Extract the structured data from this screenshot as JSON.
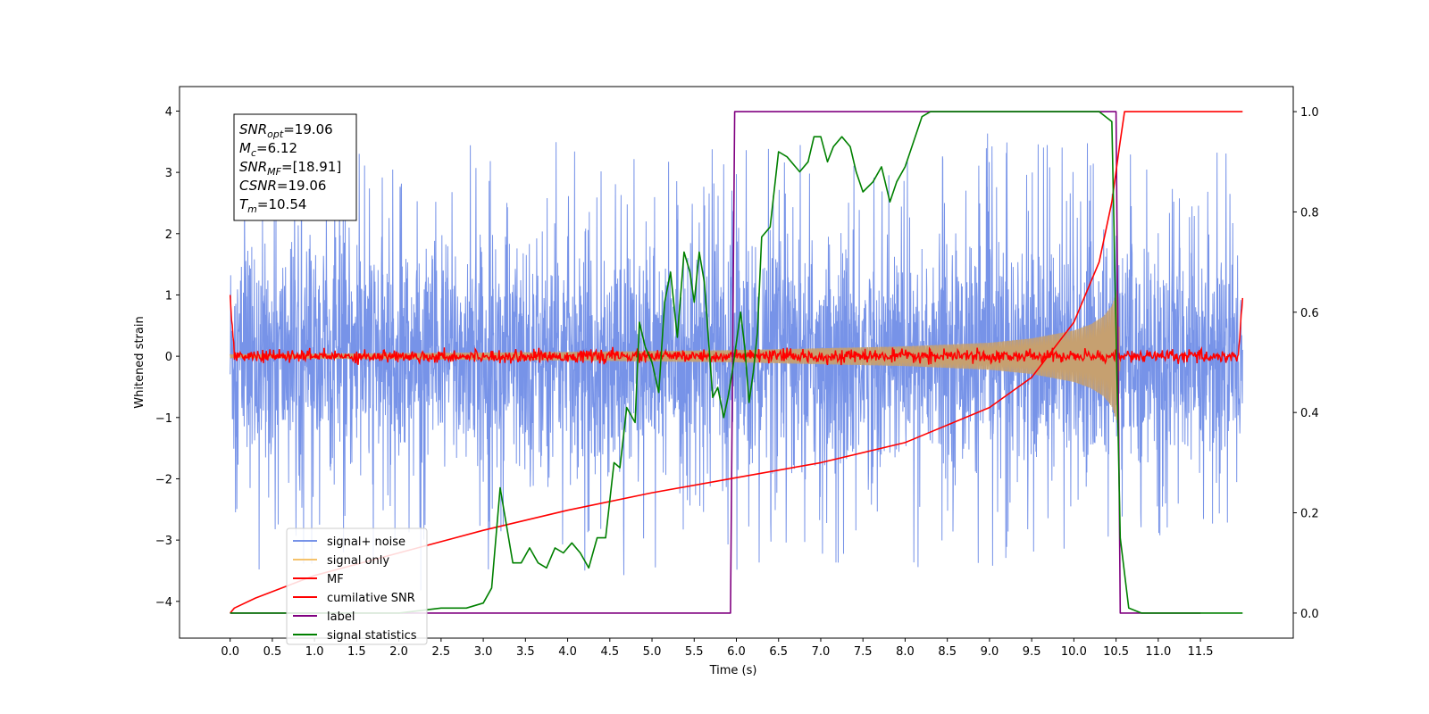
{
  "chart_data": {
    "type": "line",
    "xlabel": "Time (s)",
    "ylabel": "Whitened strain",
    "xlim": [
      -0.6,
      12.6
    ],
    "ylim": [
      -4.6,
      4.4
    ],
    "y2lim": [
      -0.05,
      1.05
    ],
    "x_ticks": [
      "0.0",
      "0.5",
      "1.0",
      "1.5",
      "2.0",
      "2.5",
      "3.0",
      "3.5",
      "4.0",
      "4.5",
      "5.0",
      "5.5",
      "6.0",
      "6.5",
      "7.0",
      "7.5",
      "8.0",
      "8.5",
      "9.0",
      "9.5",
      "10.0",
      "10.5",
      "11.0",
      "11.5"
    ],
    "y_ticks": [
      "4",
      "3",
      "2",
      "1",
      "0",
      "−1",
      "−2",
      "−3",
      "−4"
    ],
    "y2_ticks": [
      "1.0",
      "0.8",
      "0.6",
      "0.4",
      "0.2",
      "0.0"
    ],
    "legend_location": "lower-left",
    "legend": [
      {
        "label": "signal+ noise",
        "color": "#6b8ae6"
      },
      {
        "label": "signal only",
        "color": "#f5c26b"
      },
      {
        "label": "MF",
        "color": "#ff0000"
      },
      {
        "label": "cumilative SNR",
        "color": "#ff0000"
      },
      {
        "label": "label",
        "color": "#800080"
      },
      {
        "label": "signal statistics",
        "color": "#008000"
      }
    ],
    "annotation": [
      {
        "main": "SNR",
        "sub": "opt",
        "value": "=19.06"
      },
      {
        "main": "M",
        "sub": "c",
        "value": "=6.12"
      },
      {
        "main": "SNR",
        "sub": "MF",
        "value": "=[18.91]"
      },
      {
        "main": "CSNR",
        "sub": "",
        "value": "=19.06"
      },
      {
        "main": "T",
        "sub": "m",
        "value": "=10.54"
      }
    ],
    "series": [
      {
        "name": "label",
        "axis": "right",
        "x": [
          0.0,
          5.93,
          5.98,
          10.5,
          10.55,
          11.5
        ],
        "y": [
          0.0,
          0.0,
          1.0,
          1.0,
          0.0,
          0.0
        ]
      },
      {
        "name": "cumilative SNR",
        "axis": "right",
        "x": [
          0.0,
          0.05,
          0.3,
          1.0,
          2.0,
          3.0,
          4.0,
          5.0,
          6.0,
          7.0,
          8.0,
          9.0,
          9.5,
          10.0,
          10.3,
          10.45,
          10.54,
          10.6,
          11.5,
          12.0
        ],
        "y": [
          0.0,
          0.01,
          0.03,
          0.075,
          0.12,
          0.165,
          0.205,
          0.24,
          0.27,
          0.3,
          0.34,
          0.41,
          0.47,
          0.58,
          0.7,
          0.82,
          0.93,
          1.0,
          1.0,
          1.0
        ]
      },
      {
        "name": "signal statistics",
        "axis": "right",
        "x": [
          0.0,
          1.0,
          2.0,
          2.5,
          2.8,
          3.0,
          3.1,
          3.2,
          3.25,
          3.35,
          3.45,
          3.55,
          3.65,
          3.75,
          3.85,
          3.95,
          4.05,
          4.15,
          4.25,
          4.35,
          4.45,
          4.55,
          4.62,
          4.7,
          4.8,
          4.85,
          4.92,
          5.0,
          5.08,
          5.15,
          5.22,
          5.3,
          5.38,
          5.45,
          5.5,
          5.56,
          5.62,
          5.72,
          5.78,
          5.85,
          5.9,
          5.95,
          6.0,
          6.05,
          6.1,
          6.15,
          6.2,
          6.25,
          6.3,
          6.4,
          6.5,
          6.6,
          6.75,
          6.85,
          6.92,
          7.0,
          7.08,
          7.15,
          7.25,
          7.35,
          7.42,
          7.5,
          7.62,
          7.72,
          7.82,
          7.9,
          8.0,
          8.1,
          8.2,
          8.3,
          8.4,
          8.5,
          8.7,
          9.0,
          9.5,
          10.0,
          10.3,
          10.45,
          10.55,
          10.65,
          10.8,
          11.0,
          11.5,
          12.0
        ],
        "y": [
          0.0,
          0.0,
          0.0,
          0.01,
          0.01,
          0.02,
          0.05,
          0.25,
          0.2,
          0.1,
          0.1,
          0.13,
          0.1,
          0.09,
          0.13,
          0.12,
          0.14,
          0.12,
          0.09,
          0.15,
          0.15,
          0.3,
          0.29,
          0.41,
          0.38,
          0.58,
          0.53,
          0.5,
          0.44,
          0.62,
          0.68,
          0.55,
          0.72,
          0.68,
          0.62,
          0.72,
          0.66,
          0.43,
          0.45,
          0.39,
          0.43,
          0.48,
          0.54,
          0.6,
          0.53,
          0.42,
          0.48,
          0.56,
          0.75,
          0.77,
          0.92,
          0.91,
          0.88,
          0.9,
          0.95,
          0.95,
          0.9,
          0.93,
          0.95,
          0.93,
          0.88,
          0.84,
          0.86,
          0.89,
          0.82,
          0.86,
          0.89,
          0.94,
          0.99,
          1.0,
          1.0,
          1.0,
          1.0,
          1.0,
          1.0,
          1.0,
          1.0,
          0.98,
          0.15,
          0.01,
          0.0,
          0.0,
          0.0,
          0.0
        ]
      },
      {
        "name": "signal only",
        "axis": "left",
        "envelope_x": [
          0.0,
          2.0,
          4.0,
          6.0,
          8.0,
          9.0,
          9.5,
          10.0,
          10.2,
          10.35,
          10.45,
          10.52,
          10.55
        ],
        "envelope_y": [
          0.03,
          0.05,
          0.07,
          0.1,
          0.16,
          0.22,
          0.29,
          0.42,
          0.52,
          0.65,
          0.82,
          1.1,
          0.0
        ]
      },
      {
        "name": "signal+ noise",
        "axis": "left",
        "noise_amplitude": 1.8,
        "x_range": [
          0.0,
          12.0
        ]
      },
      {
        "name": "MF",
        "axis": "left",
        "noise_amplitude": 0.05,
        "x_range": [
          0.0,
          12.0
        ],
        "endpoints": [
          1.0,
          0.95
        ]
      }
    ]
  }
}
